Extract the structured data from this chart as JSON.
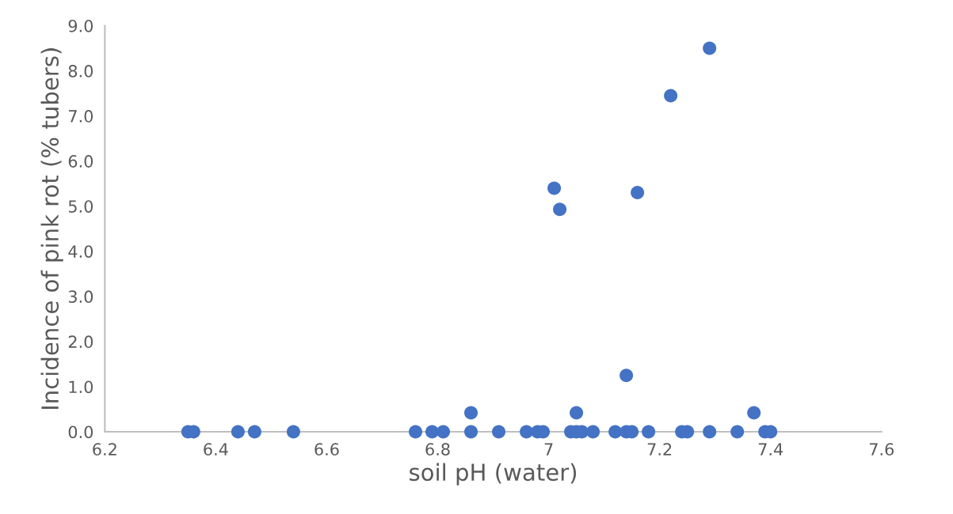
{
  "chart_data": {
    "type": "scatter",
    "xlabel": "soil pH (water)",
    "ylabel": "Incidence of pink rot (% tubers)",
    "x": [
      6.35,
      6.36,
      6.44,
      6.47,
      6.54,
      6.76,
      6.79,
      6.81,
      6.86,
      6.91,
      6.96,
      6.98,
      6.99,
      7.04,
      7.05,
      7.06,
      7.08,
      7.12,
      7.14,
      7.15,
      7.18,
      7.24,
      7.25,
      7.29,
      7.34,
      7.39,
      7.4,
      6.86,
      7.05,
      7.14,
      7.37,
      7.01,
      7.02,
      7.16,
      7.22,
      7.29
    ],
    "values": [
      0,
      0,
      0,
      0,
      0,
      0,
      0,
      0,
      0,
      0,
      0,
      0,
      0,
      0,
      0,
      0,
      0,
      0,
      0,
      0,
      0,
      0,
      0,
      0,
      0,
      0,
      0,
      0.42,
      0.42,
      1.25,
      0.42,
      5.4,
      4.93,
      5.3,
      7.45,
      8.5
    ],
    "color": "#4472c4",
    "marker": "circle",
    "grid": false,
    "legend": false,
    "xlim": [
      6.2,
      7.6
    ],
    "xticks": [
      6.2,
      6.4,
      6.6,
      6.8,
      {
        "value": 7.0,
        "label": "7"
      },
      7.2,
      7.4,
      7.6
    ],
    "ylim": [
      0,
      9
    ],
    "yticks": [
      {
        "value": 0,
        "label": "0.0"
      },
      {
        "value": 1,
        "label": "1.0"
      },
      {
        "value": 2,
        "label": "2.0"
      },
      {
        "value": 3,
        "label": "3.0"
      },
      {
        "value": 4,
        "label": "4.0"
      },
      {
        "value": 5,
        "label": "5.0"
      },
      {
        "value": 6,
        "label": "6.0"
      },
      {
        "value": 7,
        "label": "7.0"
      },
      {
        "value": 8,
        "label": "8.0"
      },
      {
        "value": 9,
        "label": "9.0"
      }
    ]
  }
}
